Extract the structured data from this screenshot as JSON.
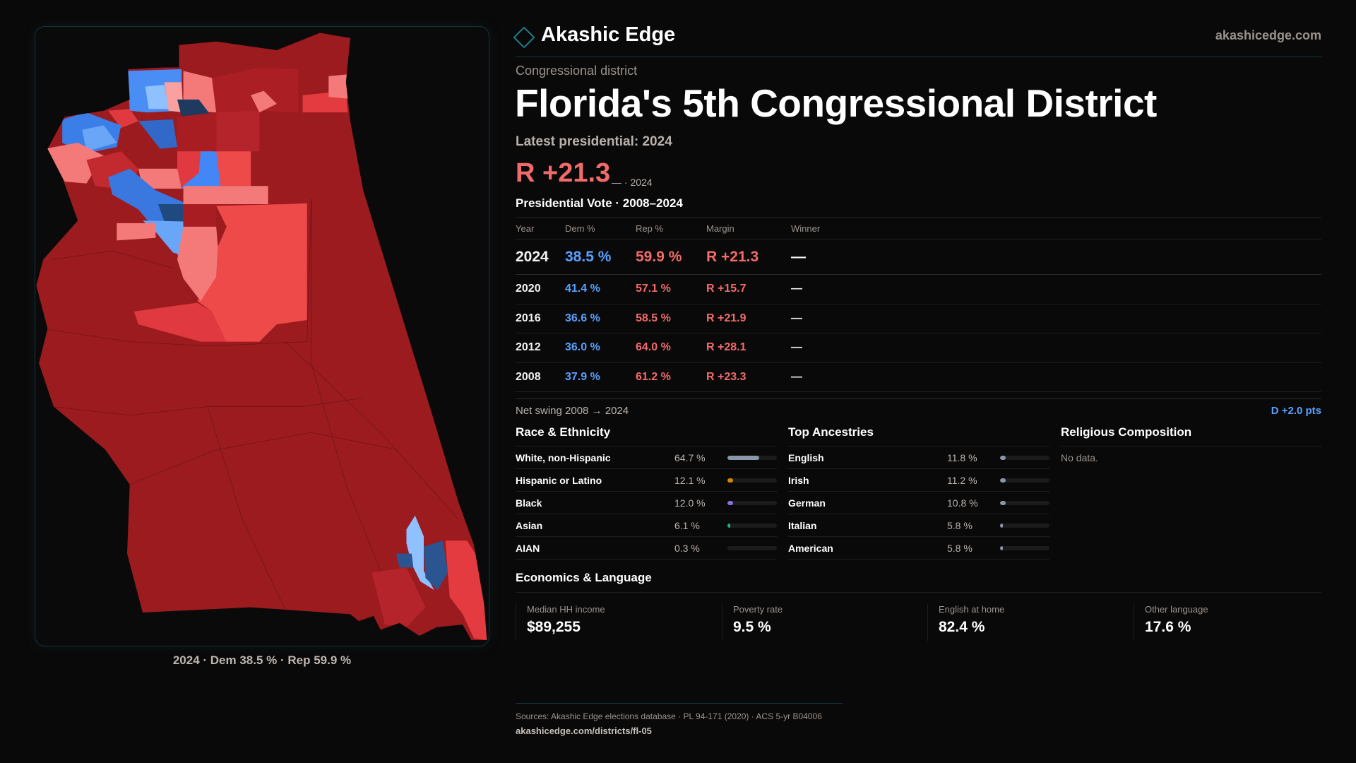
{
  "header": {
    "brand": "Akashic Edge",
    "site": "akashicedge.com",
    "logo_icon": "diamond-outline-icon"
  },
  "district": {
    "subtitle": "Congressional district",
    "title": "Florida's 5th Congressional District",
    "latest": "Latest presidential: 2024",
    "margin": "R +21.3",
    "margin_note": "— · 2024"
  },
  "map": {
    "caption": "2024 · Dem 38.5 % · Rep 59.9 %",
    "colors": {
      "strong_rep": "#9b1b1f",
      "lean_rep": "#ef4a4a",
      "strong_dem": "#1e3a5f",
      "lean_dem": "#8fc0ff"
    }
  },
  "vote": {
    "title": "Presidential Vote · 2008–2024",
    "columns": [
      "Year",
      "Dem %",
      "Rep %",
      "Margin",
      "Winner"
    ],
    "rows": [
      {
        "year": "2024",
        "dem": "38.5 %",
        "rep": "59.9 %",
        "margin": "R +21.3",
        "winner": "—"
      },
      {
        "year": "2020",
        "dem": "41.4 %",
        "rep": "57.1 %",
        "margin": "R +15.7",
        "winner": "—"
      },
      {
        "year": "2016",
        "dem": "36.6 %",
        "rep": "58.5 %",
        "margin": "R +21.9",
        "winner": "—"
      },
      {
        "year": "2012",
        "dem": "36.0 %",
        "rep": "64.0 %",
        "margin": "R +28.1",
        "winner": "—"
      },
      {
        "year": "2008",
        "dem": "37.9 %",
        "rep": "61.2 %",
        "margin": "R +23.3",
        "winner": "—"
      }
    ],
    "swing_label": "Net swing 2008 → 2024",
    "swing_value": "D +2.0 pts"
  },
  "race": {
    "title": "Race & Ethnicity",
    "items": [
      {
        "label": "White, non-Hispanic",
        "value": "64.7 %",
        "pct": 64.7,
        "color": "#8a97a8"
      },
      {
        "label": "Hispanic or Latino",
        "value": "12.1 %",
        "pct": 12.1,
        "color": "#d4860b"
      },
      {
        "label": "Black",
        "value": "12.0 %",
        "pct": 12.0,
        "color": "#8b6fe0"
      },
      {
        "label": "Asian",
        "value": "6.1 %",
        "pct": 6.1,
        "color": "#1fb37a"
      },
      {
        "label": "AIAN",
        "value": "0.3 %",
        "pct": 0.3,
        "color": "#8a97a8"
      }
    ]
  },
  "ancestry": {
    "title": "Top Ancestries",
    "items": [
      {
        "label": "English",
        "value": "11.8 %",
        "pct": 11.8,
        "color": "#8a97a8"
      },
      {
        "label": "Irish",
        "value": "11.2 %",
        "pct": 11.2,
        "color": "#8a97a8"
      },
      {
        "label": "German",
        "value": "10.8 %",
        "pct": 10.8,
        "color": "#8a97a8"
      },
      {
        "label": "Italian",
        "value": "5.8 %",
        "pct": 5.8,
        "color": "#8a97a8"
      },
      {
        "label": "American",
        "value": "5.8 %",
        "pct": 5.8,
        "color": "#8a97a8"
      }
    ]
  },
  "religion": {
    "title": "Religious Composition",
    "empty": "No data."
  },
  "economics": {
    "title": "Economics & Language",
    "stats": [
      {
        "label": "Median HH income",
        "value": "$89,255"
      },
      {
        "label": "Poverty rate",
        "value": "9.5 %"
      },
      {
        "label": "English at home",
        "value": "82.4 %"
      },
      {
        "label": "Other language",
        "value": "17.6 %"
      }
    ]
  },
  "footer": {
    "sources": "Sources: Akashic Edge elections database · PL 94-171 (2020) · ACS 5-yr B04006",
    "url": "akashicedge.com/districts/fl-05"
  }
}
